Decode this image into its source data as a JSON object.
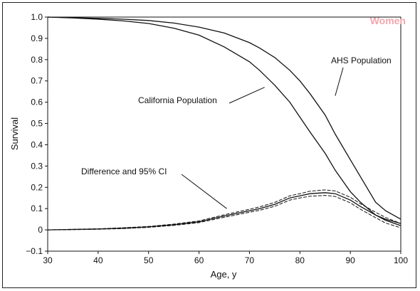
{
  "chart_data": {
    "type": "line",
    "title": "",
    "panel_label": "Women",
    "panel_label_color": "#f4a6ae",
    "xlabel": "Age, y",
    "ylabel": "Survival",
    "xlim": [
      30,
      100
    ],
    "ylim": [
      -0.1,
      1.0
    ],
    "x_ticks": [
      30,
      40,
      50,
      60,
      70,
      80,
      90,
      100
    ],
    "x_tick_labels": [
      "30",
      "40",
      "50",
      "60",
      "70",
      "80",
      "90",
      "100"
    ],
    "y_ticks": [
      -0.1,
      0,
      0.1,
      0.2,
      0.3,
      0.4,
      0.5,
      0.6,
      0.7,
      0.8,
      0.9,
      1.0
    ],
    "y_tick_labels": [
      "−0.1",
      "0",
      "0.1",
      "0.2",
      "0.3",
      "0.4",
      "0.5",
      "0.6",
      "0.7",
      "0.8",
      "0.9",
      "1.0"
    ],
    "grid": false,
    "legend": "none",
    "annotations": [
      {
        "text": "AHS Population",
        "series": 0,
        "arrow_to_x": 87,
        "arrow_to_y": 0.63
      },
      {
        "text": "California Population",
        "series": 1,
        "arrow_to_x": 73,
        "arrow_to_y": 0.67
      },
      {
        "text": "Difference and 95% CI",
        "series": 2,
        "arrow_to_x": 65.5,
        "arrow_to_y": 0.1
      }
    ],
    "series": [
      {
        "x": [
          30,
          35,
          40,
          45,
          50,
          55,
          60,
          65,
          70,
          72,
          75,
          78,
          80,
          82,
          85,
          87,
          90,
          92,
          95,
          97,
          100
        ],
        "values": [
          1.0,
          0.997,
          0.994,
          0.99,
          0.984,
          0.972,
          0.953,
          0.925,
          0.88,
          0.855,
          0.81,
          0.75,
          0.7,
          0.64,
          0.54,
          0.45,
          0.33,
          0.25,
          0.13,
          0.09,
          0.05
        ],
        "color": "#111111"
      },
      {
        "x": [
          30,
          35,
          40,
          45,
          50,
          55,
          60,
          65,
          70,
          72,
          75,
          78,
          80,
          82,
          85,
          87,
          90,
          92,
          95,
          97,
          100
        ],
        "values": [
          1.0,
          0.996,
          0.99,
          0.982,
          0.97,
          0.948,
          0.915,
          0.86,
          0.79,
          0.75,
          0.68,
          0.6,
          0.53,
          0.46,
          0.36,
          0.28,
          0.18,
          0.13,
          0.07,
          0.05,
          0.03
        ],
        "color": "#111111"
      },
      {
        "x": [
          30,
          35,
          40,
          45,
          50,
          55,
          60,
          65,
          70,
          72,
          75,
          78,
          80,
          82,
          85,
          87,
          90,
          92,
          95,
          97,
          100
        ],
        "values": [
          0.0,
          0.002,
          0.004,
          0.008,
          0.014,
          0.024,
          0.038,
          0.065,
          0.09,
          0.1,
          0.12,
          0.15,
          0.16,
          0.17,
          0.175,
          0.17,
          0.14,
          0.11,
          0.07,
          0.045,
          0.02
        ],
        "ci_lower": [
          0.0,
          0.001,
          0.003,
          0.006,
          0.012,
          0.021,
          0.034,
          0.059,
          0.083,
          0.092,
          0.111,
          0.14,
          0.15,
          0.158,
          0.162,
          0.157,
          0.127,
          0.097,
          0.057,
          0.032,
          0.01
        ],
        "ci_upper": [
          0.0,
          0.003,
          0.005,
          0.01,
          0.016,
          0.027,
          0.042,
          0.071,
          0.097,
          0.108,
          0.129,
          0.16,
          0.17,
          0.182,
          0.188,
          0.183,
          0.153,
          0.123,
          0.083,
          0.058,
          0.03
        ],
        "color": "#111111"
      }
    ]
  }
}
